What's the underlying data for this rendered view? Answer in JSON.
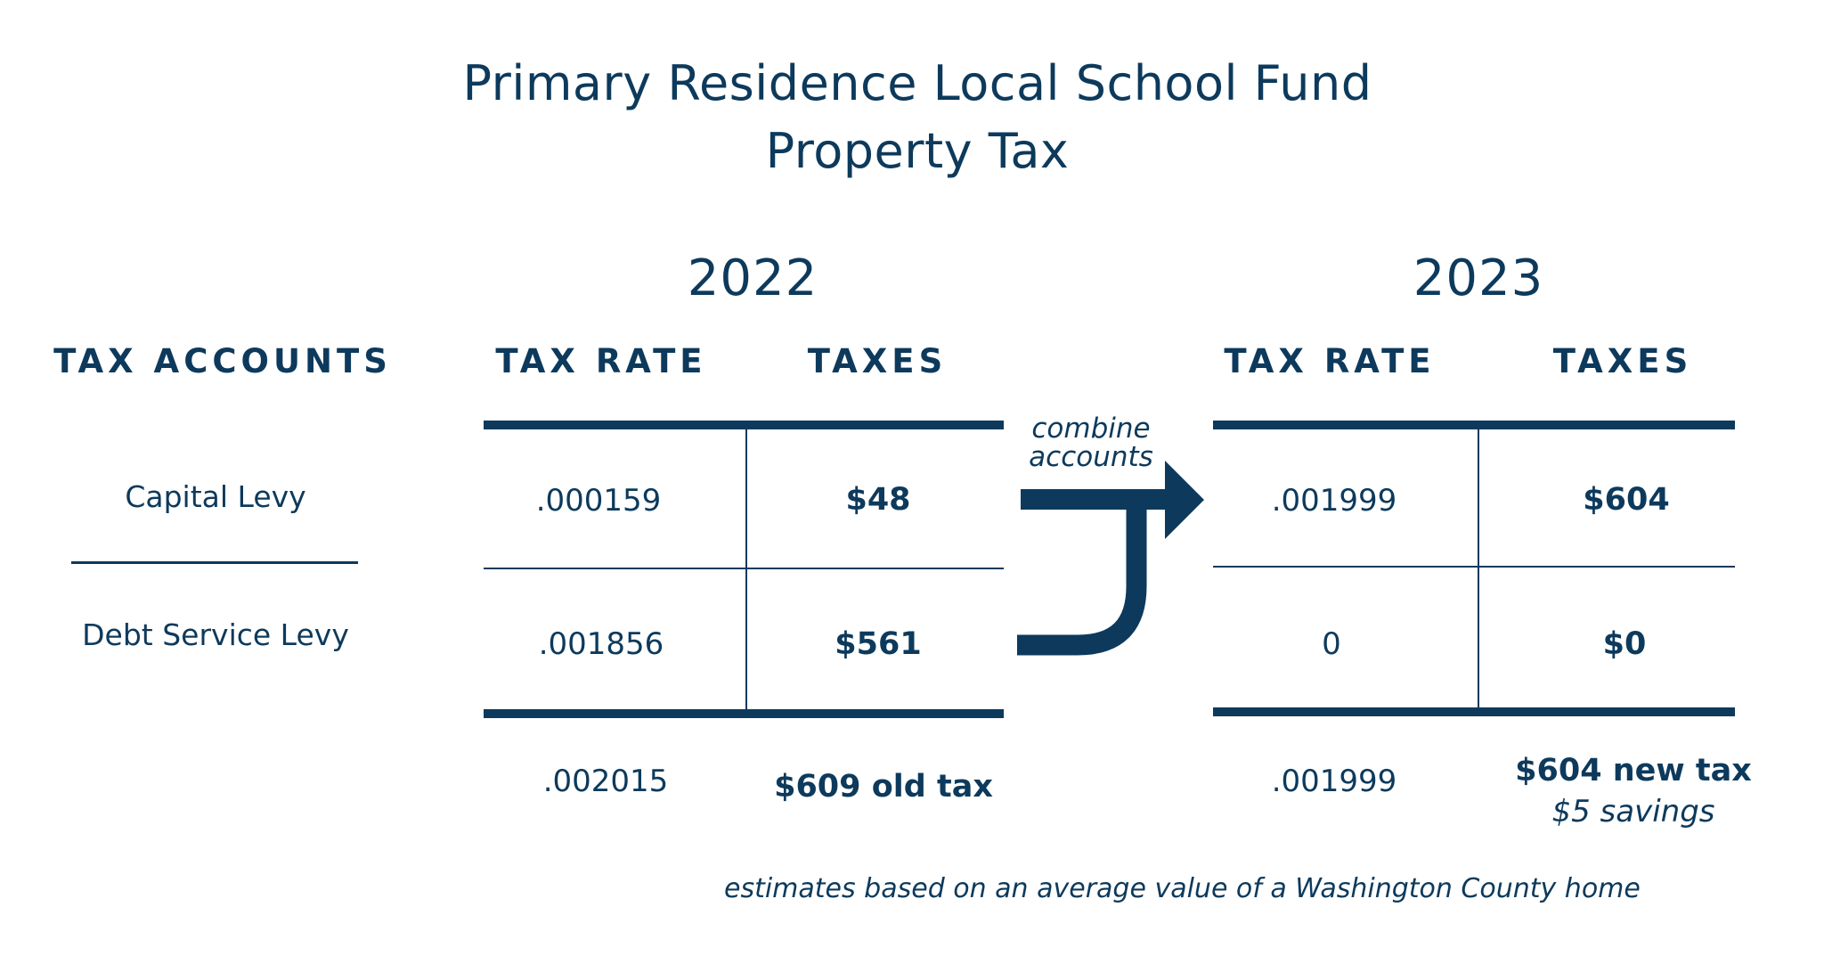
{
  "title": {
    "line1": "Primary Residence Local School Fund",
    "line2": "Property Tax"
  },
  "headers": {
    "tax_accounts": "TAX ACCOUNTS"
  },
  "accounts": [
    {
      "name": "Capital Levy"
    },
    {
      "name": "Debt Service Levy"
    }
  ],
  "years": [
    {
      "year": "2022",
      "rate_header": "TAX RATE",
      "taxes_header": "TAXES",
      "rows": [
        {
          "rate": ".000159",
          "taxes": "$48"
        },
        {
          "rate": ".001856",
          "taxes": "$561"
        }
      ],
      "total_rate": ".002015",
      "total_taxes": "$609 old tax"
    },
    {
      "year": "2023",
      "rate_header": "TAX RATE",
      "taxes_header": "TAXES",
      "rows": [
        {
          "rate": ".001999",
          "taxes": "$604"
        },
        {
          "rate": "0",
          "taxes": "$0"
        }
      ],
      "total_rate": ".001999",
      "total_taxes": "$604 new tax",
      "savings": "$5 savings"
    }
  ],
  "arrow": {
    "label_line1": "combine",
    "label_line2": "accounts"
  },
  "footnote": "estimates based on an average value of a Washington County home",
  "colors": {
    "primary": "#0d3a5c",
    "background": "#ffffff"
  }
}
